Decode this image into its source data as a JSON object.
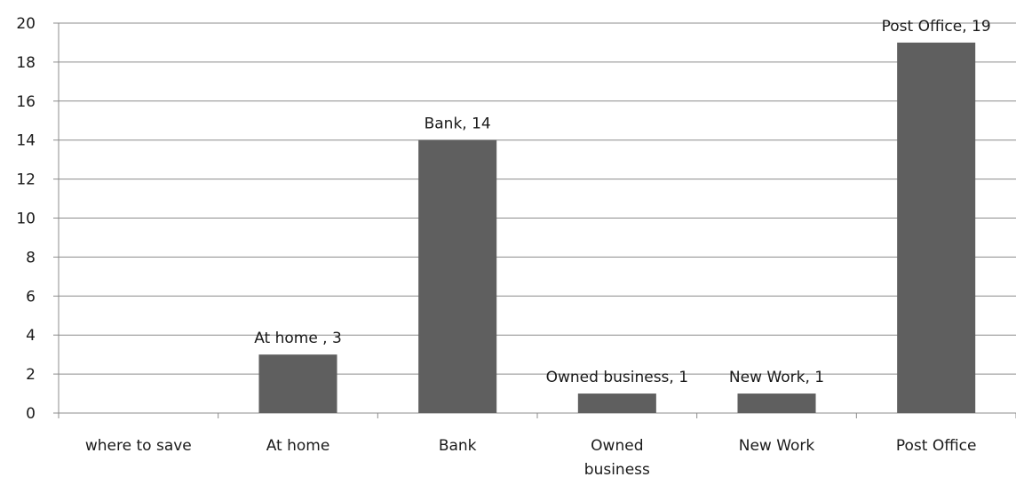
{
  "chart_data": {
    "type": "bar",
    "title": "",
    "xlabel": "",
    "ylabel": "",
    "ylim": [
      0,
      20
    ],
    "yticks": [
      0,
      2,
      4,
      6,
      8,
      10,
      12,
      14,
      16,
      18,
      20
    ],
    "grid": true,
    "legend": "none",
    "bar_color": "#5f5f5f",
    "categories": [
      {
        "lines": [
          "where to save"
        ]
      },
      {
        "lines": [
          "At home"
        ]
      },
      {
        "lines": [
          "Bank"
        ]
      },
      {
        "lines": [
          "Owned",
          "business"
        ]
      },
      {
        "lines": [
          "New Work"
        ]
      },
      {
        "lines": [
          "Post Office"
        ]
      }
    ],
    "values": [
      null,
      3,
      14,
      1,
      1,
      19
    ],
    "data_labels": [
      "",
      "At home  , 3",
      "Bank, 14",
      "Owned business, 1",
      "New Work, 1",
      "Post Office, 19"
    ]
  }
}
